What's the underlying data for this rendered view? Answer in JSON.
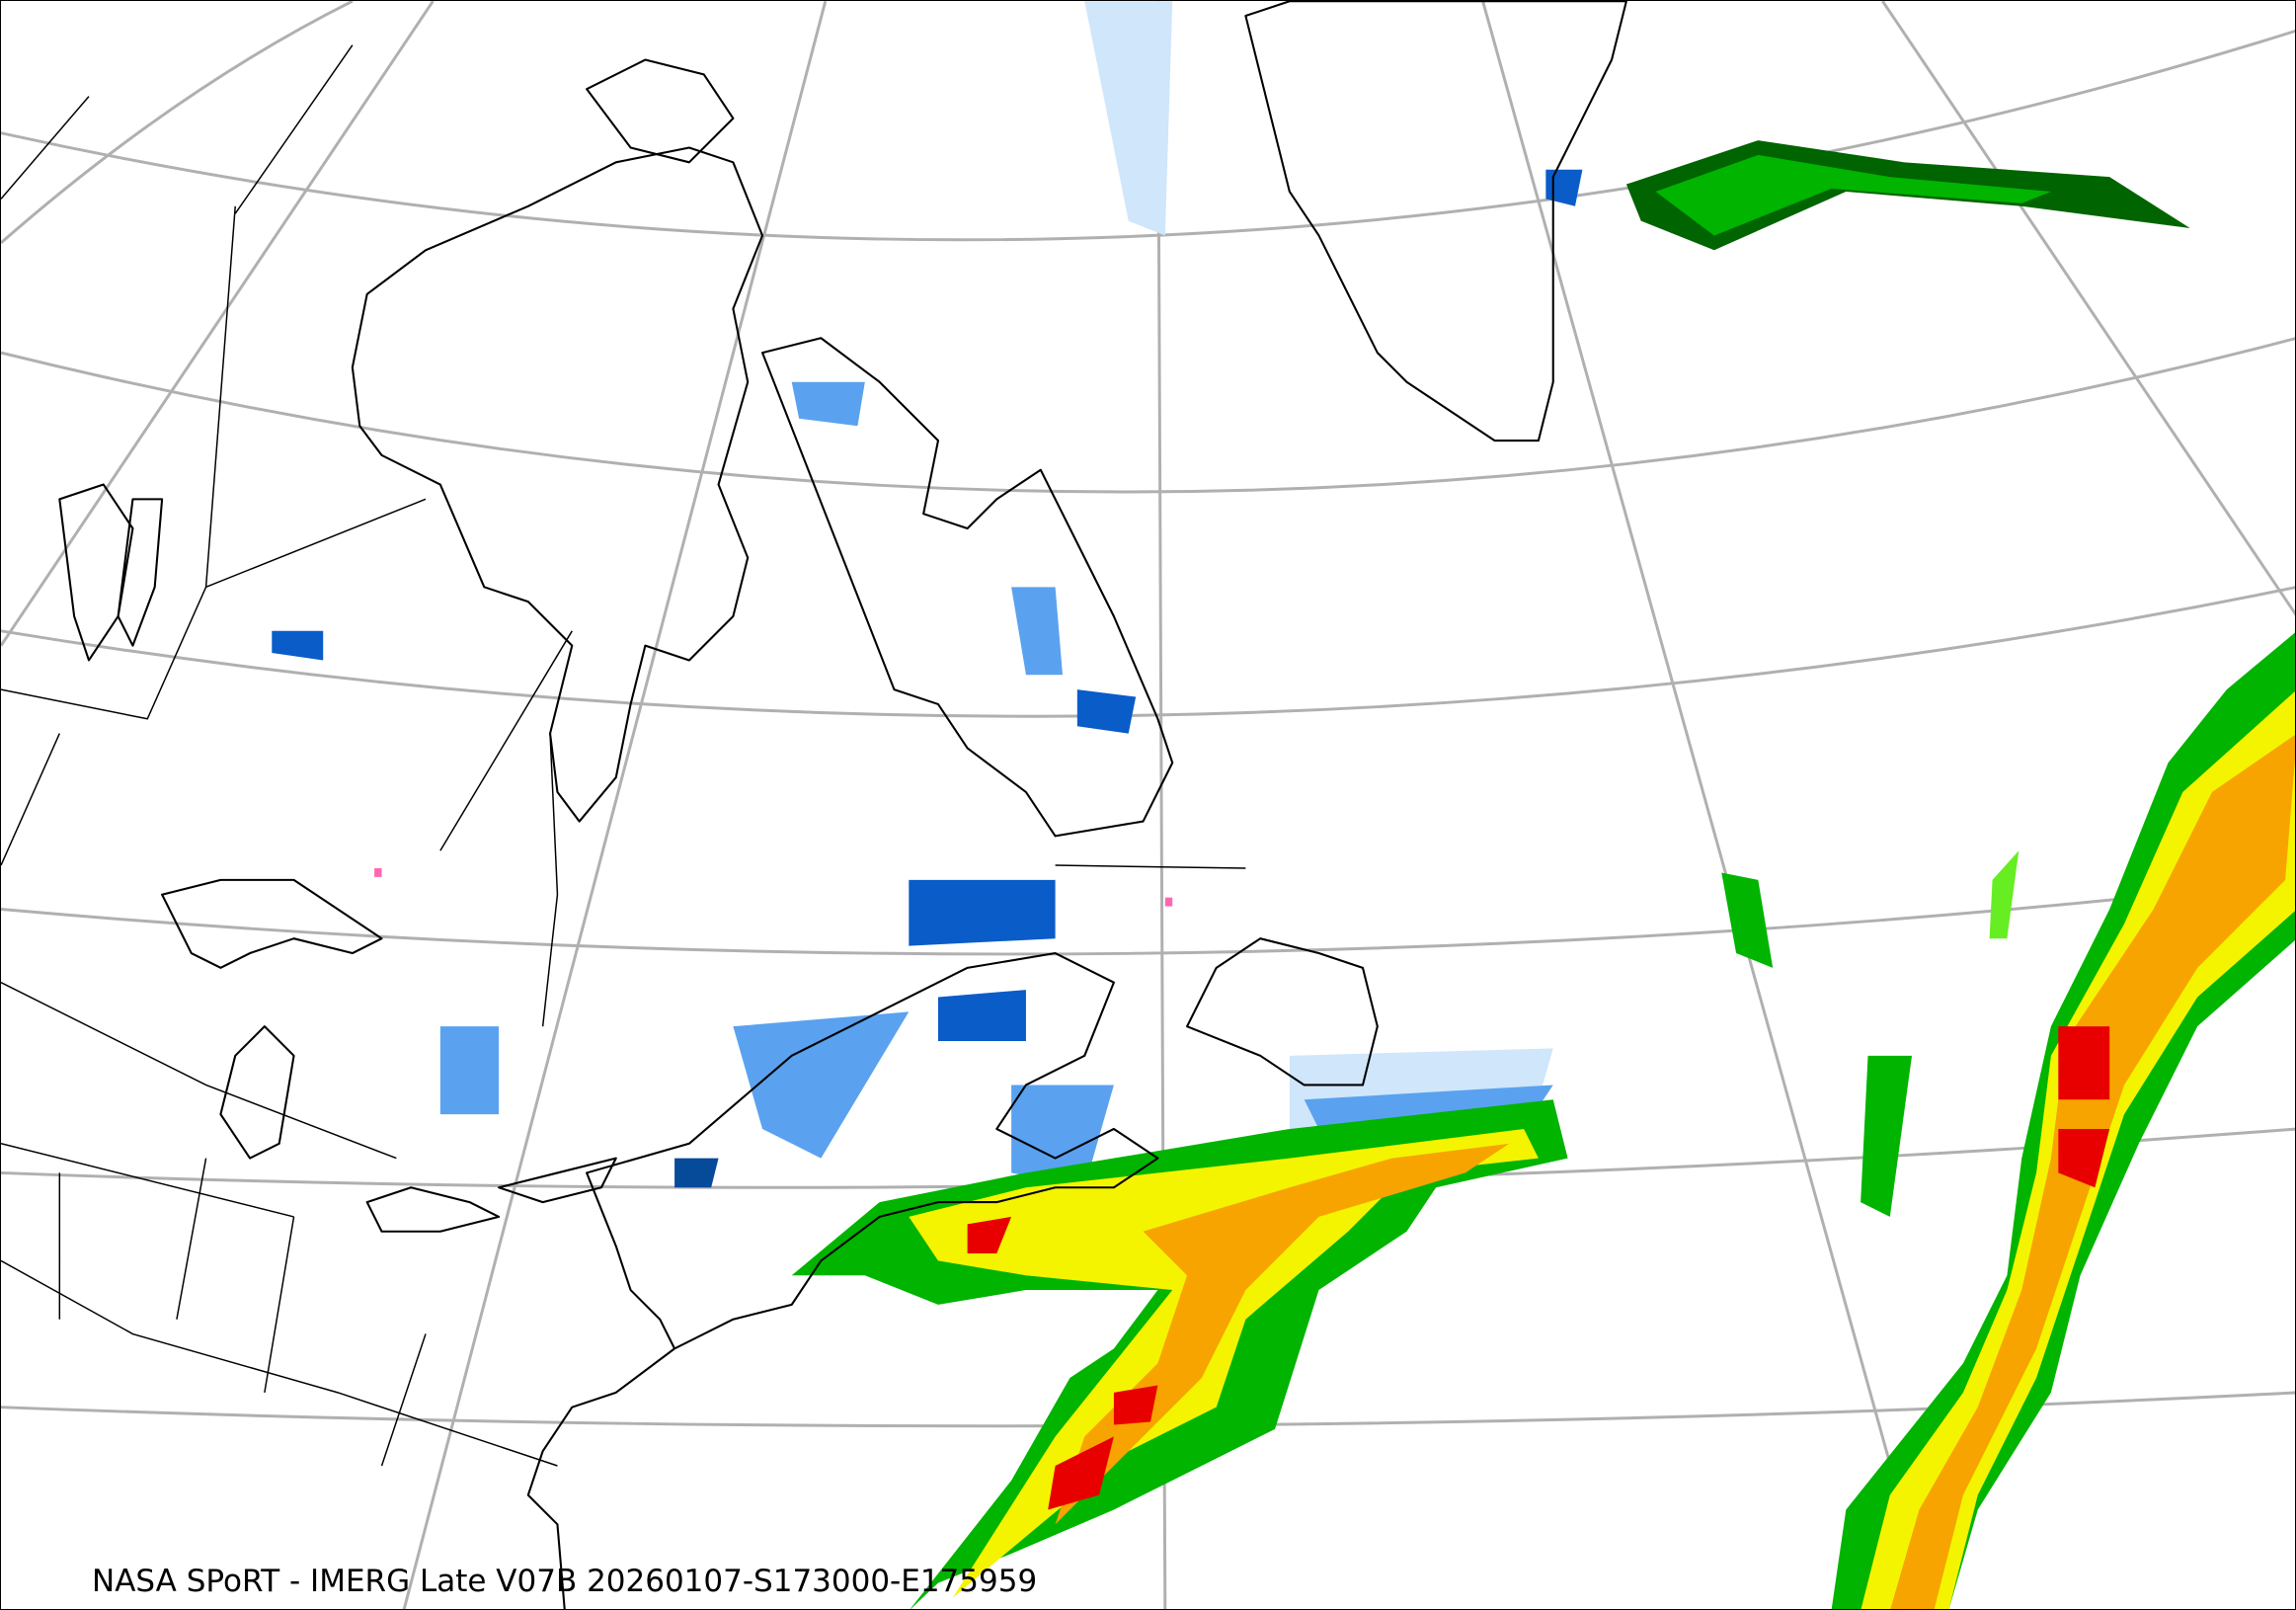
{
  "caption": "NASA SPoRT - IMERG Late V07B 20260107-S173000-E175959",
  "map": {
    "projection": "polar conic",
    "region": "Northeastern North America, Greenland and North Atlantic",
    "graticule": true,
    "colors": {
      "graticule": "#b0b0b0",
      "coastline": "#000000",
      "snow_light": "#cfe6fb",
      "snow_mid": "#5aa2ef",
      "snow_heavy": "#0a5cc8",
      "snow_dark": "#064a9a",
      "mixed": "#ff66b2",
      "rain_dark_green": "#006400",
      "rain_green": "#00b400",
      "rain_light_green": "#66ee22",
      "rain_yellow": "#f4f400",
      "rain_orange": "#f7a400",
      "rain_red": "#e80000"
    }
  }
}
